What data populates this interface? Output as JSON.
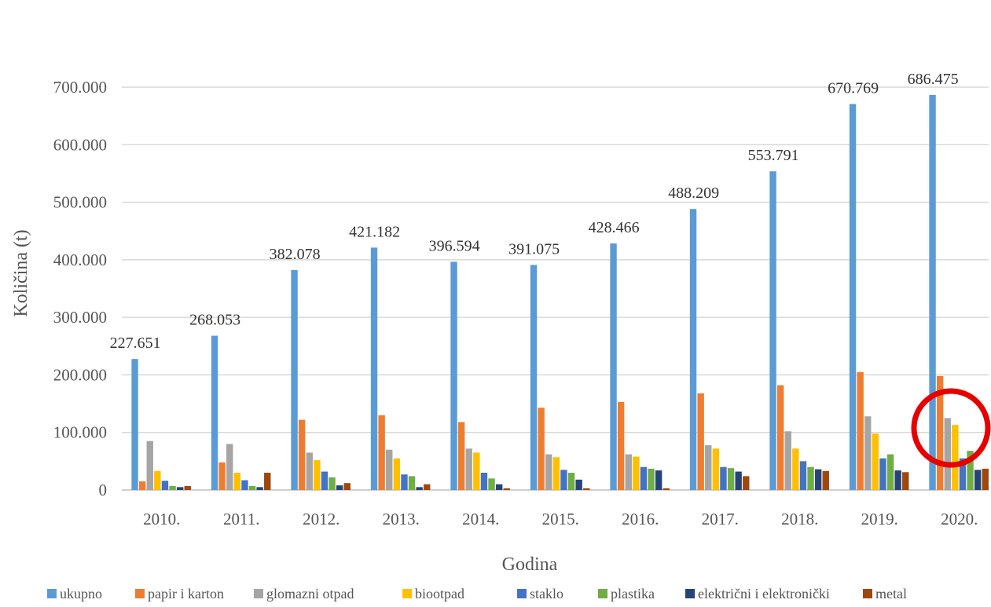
{
  "chart_data": {
    "type": "bar",
    "title": "",
    "xlabel": "Godina",
    "ylabel": "Količina (t)",
    "ylim": [
      0,
      700000
    ],
    "y_ticks": [
      0,
      100000,
      200000,
      300000,
      400000,
      500000,
      600000,
      700000
    ],
    "y_tick_labels": [
      "0",
      "100.000",
      "200.000",
      "300.000",
      "400.000",
      "500.000",
      "600.000",
      "700.000"
    ],
    "categories": [
      "2010.",
      "2011.",
      "2012.",
      "2013.",
      "2014.",
      "2015.",
      "2016.",
      "2017.",
      "2018.",
      "2019.",
      "2020."
    ],
    "grid": true,
    "legend_position": "bottom",
    "series": [
      {
        "name": "ukupno",
        "color": "#5B9BD5",
        "values": [
          227651,
          268053,
          382078,
          421182,
          396594,
          391075,
          428466,
          488209,
          553791,
          670769,
          686475
        ],
        "data_labels": [
          "227.651",
          "268.053",
          "382.078",
          "421.182",
          "396.594",
          "391.075",
          "428.466",
          "488.209",
          "553.791",
          "670.769",
          "686.475"
        ]
      },
      {
        "name": "papir i karton",
        "color": "#ED7D31",
        "values": [
          15000,
          48000,
          122000,
          130000,
          118000,
          143000,
          153000,
          168000,
          182000,
          205000,
          198000
        ]
      },
      {
        "name": "glomazni otpad",
        "color": "#A5A5A5",
        "values": [
          85000,
          80000,
          65000,
          70000,
          72000,
          62000,
          62000,
          78000,
          102000,
          128000,
          125000
        ]
      },
      {
        "name": "biootpad",
        "color": "#FFC000",
        "values": [
          33000,
          30000,
          52000,
          55000,
          65000,
          57000,
          58000,
          72000,
          72000,
          98000,
          113000
        ]
      },
      {
        "name": "staklo",
        "color": "#4472C4",
        "values": [
          16000,
          17000,
          32000,
          27000,
          30000,
          35000,
          40000,
          40000,
          50000,
          55000,
          55000
        ]
      },
      {
        "name": "plastika",
        "color": "#70AD47",
        "values": [
          7000,
          7000,
          22000,
          24000,
          20000,
          30000,
          37000,
          38000,
          40000,
          62000,
          68000
        ]
      },
      {
        "name": "električni i elektronički",
        "color": "#264478",
        "values": [
          5000,
          5000,
          8000,
          5000,
          10000,
          18000,
          34000,
          32000,
          36000,
          34000,
          35000
        ]
      },
      {
        "name": "metal",
        "color": "#9E480E",
        "values": [
          7000,
          30000,
          12000,
          10000,
          3000,
          3000,
          3000,
          24000,
          33000,
          31000,
          37000
        ]
      }
    ],
    "annotation": {
      "shape": "circle",
      "color": "#E60000"
    }
  }
}
